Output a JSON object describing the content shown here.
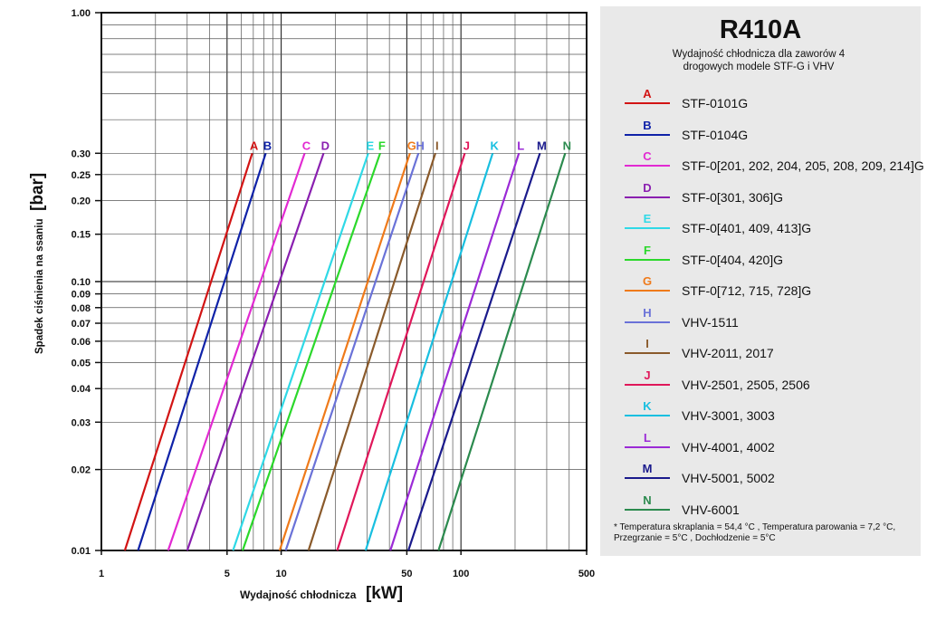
{
  "chart_data": {
    "type": "line",
    "title": "R410A",
    "subtitle": "Wydajność chłodnicza dla zaworów 4 drogowych modele STF-G i VHV",
    "xlabel": "Wydajność chłodnicza",
    "xlabel_unit": "[kW]",
    "ylabel": "Spadek ciśnienia na ssaniu",
    "ylabel_unit": "[bar]",
    "x_scale": "log",
    "y_scale": "log",
    "xlim": [
      1,
      500
    ],
    "ylim": [
      0.01,
      1.0
    ],
    "grid": true,
    "legend_position": "right",
    "x_tick_labels": [
      "1",
      "5",
      "10",
      "50",
      "100",
      "500"
    ],
    "x_tick_values": [
      1,
      5,
      10,
      50,
      100,
      500
    ],
    "y_tick_labels": [
      "1.00",
      "0.30",
      "0.25",
      "0.20",
      "0.15",
      "0.10",
      "0.09",
      "0.08",
      "0.07",
      "0.06",
      "0.05",
      "0.04",
      "0.03",
      "0.02",
      "0.01"
    ],
    "y_tick_values": [
      1.0,
      0.3,
      0.25,
      0.2,
      0.15,
      0.1,
      0.09,
      0.08,
      0.07,
      0.06,
      0.05,
      0.04,
      0.03,
      0.02,
      0.01
    ],
    "series": [
      {
        "letter": "A",
        "name": "STF-0101G",
        "color": "#d21414",
        "x": [
          1.35,
          6.9
        ],
        "y": [
          0.01,
          0.3
        ]
      },
      {
        "letter": "B",
        "name": "STF-0104G",
        "color": "#0f22a8",
        "x": [
          1.6,
          8.2
        ],
        "y": [
          0.01,
          0.3
        ]
      },
      {
        "letter": "C",
        "name": "STF-0[201, 202, 204, 205, 208, 209, 214]G",
        "color": "#e22ad2",
        "x": [
          2.35,
          13.5
        ],
        "y": [
          0.01,
          0.3
        ]
      },
      {
        "letter": "D",
        "name": "STF-0[301, 306]G",
        "color": "#8a1fb0",
        "x": [
          3.0,
          17.2
        ],
        "y": [
          0.01,
          0.3
        ]
      },
      {
        "letter": "E",
        "name": "STF-0[401, 409, 413]G",
        "color": "#2fd9e6",
        "x": [
          5.4,
          30.5
        ],
        "y": [
          0.01,
          0.3
        ]
      },
      {
        "letter": "F",
        "name": "STF-0[404, 420]G",
        "color": "#2bd82b",
        "x": [
          6.1,
          35.5
        ],
        "y": [
          0.01,
          0.3
        ]
      },
      {
        "letter": "G",
        "name": "STF-0[712, 715, 728]G",
        "color": "#ef7a1a",
        "x": [
          9.8,
          52.0
        ],
        "y": [
          0.01,
          0.3
        ]
      },
      {
        "letter": "H",
        "name": "VHV-1511",
        "color": "#6a72d8",
        "x": [
          10.6,
          58.0
        ],
        "y": [
          0.01,
          0.3
        ]
      },
      {
        "letter": "I",
        "name": "VHV-2011, 2017",
        "color": "#8a5a2b",
        "x": [
          14.2,
          72.0
        ],
        "y": [
          0.01,
          0.3
        ]
      },
      {
        "letter": "J",
        "name": "VHV-2501, 2505, 2506",
        "color": "#e0175a",
        "x": [
          20.5,
          105.0
        ],
        "y": [
          0.01,
          0.3
        ]
      },
      {
        "letter": "K",
        "name": "VHV-3001, 3003",
        "color": "#18bfe0",
        "x": [
          29.5,
          150.0
        ],
        "y": [
          0.01,
          0.3
        ]
      },
      {
        "letter": "L",
        "name": "VHV-4001, 4002",
        "color": "#9b2ad6",
        "x": [
          40.5,
          210.0
        ],
        "y": [
          0.01,
          0.3
        ]
      },
      {
        "letter": "M",
        "name": "VHV-5001, 5002",
        "color": "#1a1a8c",
        "x": [
          51.0,
          275.0
        ],
        "y": [
          0.01,
          0.3
        ]
      },
      {
        "letter": "N",
        "name": "VHV-6001",
        "color": "#2b8a4e",
        "x": [
          75.0,
          380.0
        ],
        "y": [
          0.01,
          0.3
        ]
      }
    ],
    "footnote": "* Temperatura skraplania = 54,4 °C , Temperatura parowania = 7,2 °C, Przegrzanie = 5°C , Dochłodzenie = 5°C"
  }
}
